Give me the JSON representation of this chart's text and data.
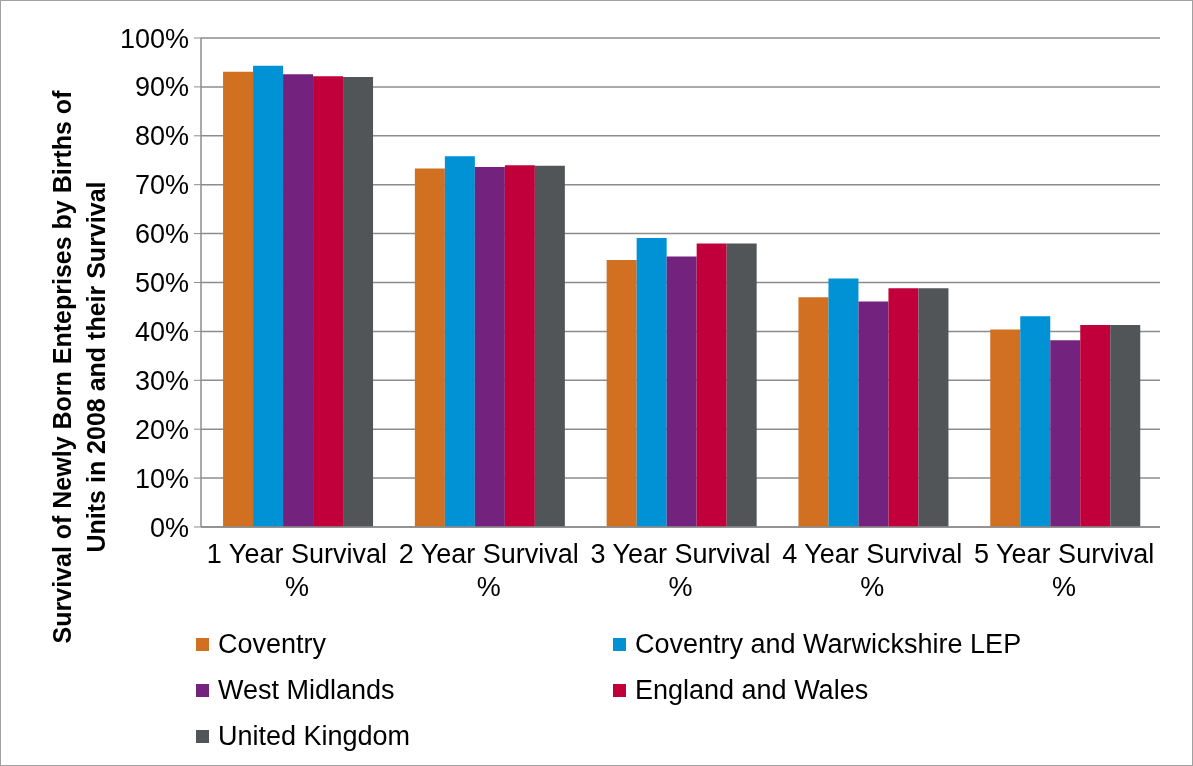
{
  "chart_data": {
    "type": "bar",
    "ylabel": "Survival of Newly Born Enteprises by Births of Units in 2008 and their Survival",
    "categories": [
      "1 Year Survival %",
      "2 Year Survival %",
      "3 Year Survival %",
      "4 Year Survival %",
      "5 Year Survival %"
    ],
    "series": [
      {
        "name": "Coventry",
        "color": "#d07020",
        "values": [
          93.1,
          73.3,
          54.6,
          47.0,
          40.4
        ]
      },
      {
        "name": "Coventry and Warwickshire LEP",
        "color": "#0092d4",
        "values": [
          94.3,
          75.8,
          59.1,
          50.8,
          43.1
        ]
      },
      {
        "name": "West Midlands",
        "color": "#73237d",
        "values": [
          92.6,
          73.6,
          55.3,
          46.1,
          38.2
        ]
      },
      {
        "name": "England and Wales",
        "color": "#c1003b",
        "values": [
          92.2,
          74.0,
          58.0,
          48.8,
          41.3
        ]
      },
      {
        "name": "United Kingdom",
        "color": "#515558",
        "values": [
          92.0,
          73.9,
          58.0,
          48.8,
          41.3
        ]
      }
    ],
    "ylim": [
      0,
      100
    ],
    "yticks": [
      {
        "value": 0,
        "label": "0%"
      },
      {
        "value": 10,
        "label": "10%"
      },
      {
        "value": 20,
        "label": "20%"
      },
      {
        "value": 30,
        "label": "30%"
      },
      {
        "value": 40,
        "label": "40%"
      },
      {
        "value": 50,
        "label": "50%"
      },
      {
        "value": 60,
        "label": "60%"
      },
      {
        "value": 70,
        "label": "70%"
      },
      {
        "value": 80,
        "label": "80%"
      },
      {
        "value": 90,
        "label": "90%"
      },
      {
        "value": 100,
        "label": "100%"
      }
    ],
    "grid": "y",
    "legend": "bottom"
  }
}
